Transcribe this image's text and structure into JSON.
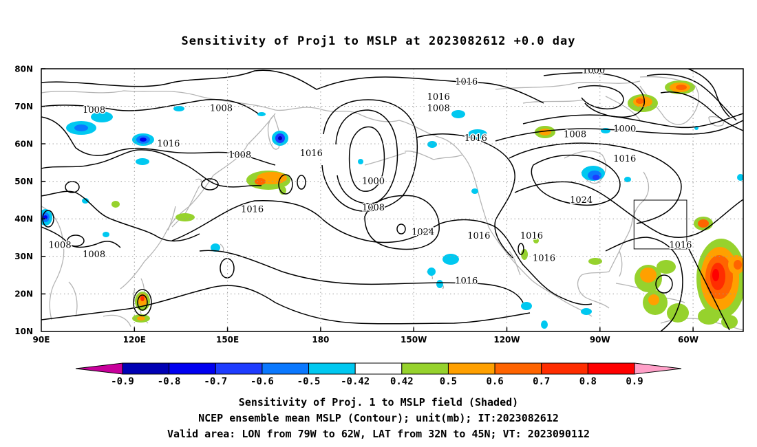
{
  "title": "Sensitivity of Proj1 to MSLP at 2023082612 +0.0 day",
  "map": {
    "lat_labels": [
      "80N",
      "70N",
      "60N",
      "50N",
      "40N",
      "30N",
      "20N",
      "10N"
    ],
    "lon_labels": [
      "90E",
      "120E",
      "150E",
      "180",
      "150W",
      "120W",
      "90W",
      "60W"
    ],
    "contour_labels": [
      {
        "text": "1016",
        "lon": 227,
        "lat": 76.5
      },
      {
        "text": "1016",
        "lon": 218,
        "lat": 72.5
      },
      {
        "text": "1008",
        "lon": 218,
        "lat": 69.5
      },
      {
        "text": "1000",
        "lon": 268,
        "lat": 79.5
      },
      {
        "text": "1008",
        "lon": 107,
        "lat": 69
      },
      {
        "text": "1008",
        "lon": 148,
        "lat": 69.5
      },
      {
        "text": "1016",
        "lon": 131,
        "lat": 60
      },
      {
        "text": "1008",
        "lon": 154,
        "lat": 57
      },
      {
        "text": "1016",
        "lon": 177,
        "lat": 57.5
      },
      {
        "text": "1016",
        "lon": 230,
        "lat": 61.5
      },
      {
        "text": "1008",
        "lon": 262,
        "lat": 62.5
      },
      {
        "text": "1000",
        "lon": 278,
        "lat": 64
      },
      {
        "text": "1016",
        "lon": 278,
        "lat": 56
      },
      {
        "text": "1000",
        "lon": 197,
        "lat": 50
      },
      {
        "text": "1008",
        "lon": 197,
        "lat": 43
      },
      {
        "text": "1016",
        "lon": 158,
        "lat": 42.5
      },
      {
        "text": "1024",
        "lon": 264,
        "lat": 45
      },
      {
        "text": "1024",
        "lon": 213,
        "lat": 36.5
      },
      {
        "text": "1016",
        "lon": 231,
        "lat": 35.5
      },
      {
        "text": "1016",
        "lon": 248,
        "lat": 35.5
      },
      {
        "text": "1016",
        "lon": 252,
        "lat": 29.5
      },
      {
        "text": "1016",
        "lon": 296,
        "lat": 33
      },
      {
        "text": "1016",
        "lon": 227,
        "lat": 23.5
      },
      {
        "text": "1008",
        "lon": 96,
        "lat": 33
      },
      {
        "text": "1008",
        "lon": 107,
        "lat": 30.5
      }
    ],
    "valid_box": {
      "lon_west": 79,
      "lon_east": 62,
      "lat_south": 32,
      "lat_north": 45
    },
    "colors": {
      "land_outline": "#b4b4b4",
      "contour": "#000000",
      "grid": "#999999"
    }
  },
  "colorbar": {
    "labels": [
      "-0.9",
      "-0.8",
      "-0.7",
      "-0.6",
      "-0.5",
      "-0.42",
      "0.42",
      "0.5",
      "0.6",
      "0.7",
      "0.8",
      "0.9"
    ],
    "colors": [
      "#c8009b",
      "#0000b4",
      "#0000f0",
      "#1e3cff",
      "#0a78ff",
      "#00c8f0",
      "#ffffff",
      "#96d22d",
      "#ffa000",
      "#ff6400",
      "#ff2d00",
      "#ff0000",
      "#ffa0c8"
    ]
  },
  "captions": [
    "Sensitivity of Proj. 1 to MSLP field (Shaded)",
    "NCEP ensemble mean MSLP (Contour); unit(mb); IT:2023082612",
    "Valid area: LON from 79W to 62W, LAT from 32N to 45N; VT: 2023090112"
  ]
}
